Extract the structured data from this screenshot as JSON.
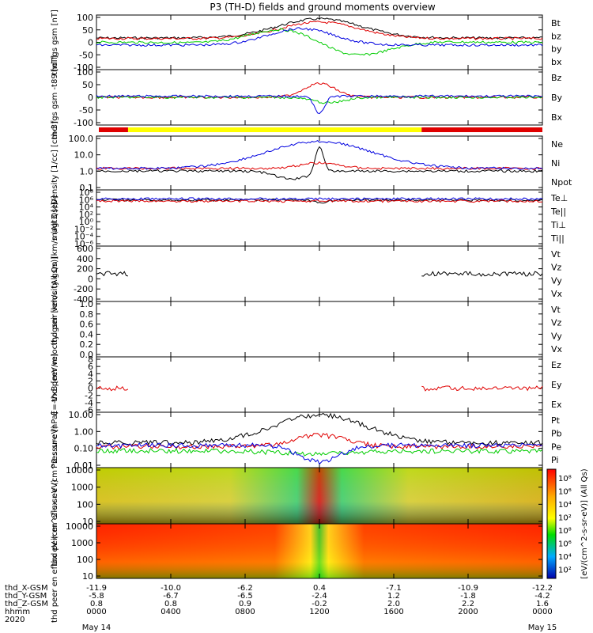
{
  "title": "P3 (TH-D) fields and ground moments overview",
  "colors": {
    "black": "#000000",
    "red": "#e00000",
    "green": "#00cc00",
    "blue": "#0000e0",
    "yellow": "#ffff00"
  },
  "chart_data": {
    "type": "line",
    "title": "P3 (TH-D) fields and ground moments overview",
    "x_ticks": [
      "0000",
      "0400",
      "0800",
      "1200",
      "1600",
      "2000",
      "0000"
    ],
    "x_range_hours": [
      0,
      24
    ],
    "date_labels": {
      "start": "May 14",
      "end": "May 15",
      "year": "2020"
    },
    "ephemeris": {
      "labels": [
        "thd_X-GSM",
        "thd_Y-GSM",
        "thd_Z-GSM",
        "hhmm",
        "2020"
      ],
      "X": [
        "-11.9",
        "-10.0",
        "-6.2",
        "0.4",
        "-7.1",
        "-10.9",
        "-12.2"
      ],
      "Y": [
        "-5.8",
        "-6.7",
        "-6.5",
        "-2.4",
        "1.2",
        "-1.8",
        "-4.2"
      ],
      "Z": [
        "0.8",
        "0.8",
        "0.9",
        "-0.2",
        "2.0",
        "2.2",
        "1.6"
      ]
    },
    "panels": [
      {
        "ylabel": "thd fgs gsm [nT]",
        "yticks": [
          "100",
          "50",
          "0",
          "-50",
          "-100"
        ],
        "ylim": [
          -100,
          100
        ],
        "legend": [
          "Bt",
          "bz",
          "by",
          "bx"
        ],
        "legend_colors": [
          "black",
          "red",
          "green",
          "blue"
        ]
      },
      {
        "ylabel": "thd fgs gsm -t89 [nT]",
        "yticks": [
          "100",
          "50",
          "0",
          "-50",
          "-100"
        ],
        "ylim": [
          -120,
          110
        ],
        "legend": [
          "Bz",
          "By",
          "Bx"
        ],
        "legend_colors": [
          "red",
          "green",
          "blue"
        ]
      },
      {
        "ylabel": "Density [1/cc] [cm-3]",
        "yticks": [
          "100.0",
          "10.0",
          "1.0",
          "0.1"
        ],
        "log": true,
        "legend": [
          "Ne",
          "Ni",
          "Npot"
        ],
        "legend_colors": [
          "red",
          "black",
          "blue"
        ]
      },
      {
        "ylabel": "magt3 [eV]",
        "yticks": [
          "10⁸",
          "10⁶",
          "10⁴",
          "10²",
          "10⁰",
          "10⁻²",
          "10⁻⁴",
          "10⁻⁶"
        ],
        "log": true,
        "legend": [
          "Te⊥",
          "Te||",
          "Ti⊥",
          "Ti||"
        ],
        "legend_colors": [
          "red",
          "black",
          "red",
          "green"
        ]
      },
      {
        "ylabel": "thd peir velocity gsm [km/s (All Qs)]",
        "yticks": [
          "600",
          "400",
          "200",
          "0",
          "-200",
          "-400"
        ],
        "ylim": [
          -400,
          600
        ],
        "legend": [
          "Vt",
          "Vz",
          "Vy",
          "Vx"
        ],
        "legend_colors": [
          "black",
          "red",
          "green",
          "blue"
        ]
      },
      {
        "ylabel": "thd peer velocity gsm [km/s (All Qs)]",
        "yticks": [
          "1.0",
          "0.8",
          "0.6",
          "0.4",
          "0.2",
          "0.0"
        ],
        "ylim": [
          0,
          1
        ],
        "legend": [
          "Vt",
          "Vz",
          "Vy",
          "Vx"
        ],
        "legend_colors": [
          "black",
          "red",
          "green",
          "blue"
        ]
      },
      {
        "ylabel": "E=-VxB [mV/m]",
        "yticks": [
          "8",
          "6",
          "4",
          "2",
          "0",
          "-2",
          "-4",
          "-6"
        ],
        "ylim": [
          -6,
          8
        ],
        "legend": [
          "Ez",
          "Ey",
          "Ex"
        ],
        "legend_colors": [
          "red",
          "green",
          "blue"
        ]
      },
      {
        "ylabel": "Pressure [nPa]",
        "yticks": [
          "10.00",
          "1.00",
          "0.10",
          "0.01"
        ],
        "log": true,
        "legend": [
          "Pt",
          "Pb",
          "Pe",
          "Pi"
        ],
        "legend_colors": [
          "black",
          "red",
          "green",
          "blue"
        ]
      },
      {
        "ylabel": "thd peir en eflux eV (cm^2-s-sr-eV)",
        "yticks": [
          "10000",
          "1000",
          "100",
          "10"
        ],
        "log": true,
        "type": "heatmap"
      },
      {
        "ylabel": "thd peer en eflux eV (cm^2-s-sr-eV)",
        "yticks": [
          "10000",
          "1000",
          "100",
          "10"
        ],
        "log": true,
        "type": "heatmap"
      }
    ],
    "colorbar": {
      "label": "[eV/(cm^2-s-sr-eV)] (All Qs)",
      "ticks": [
        "10⁸",
        "10⁶",
        "10⁴",
        "10²",
        "10⁸",
        "10⁶",
        "10⁴",
        "10²"
      ]
    }
  }
}
